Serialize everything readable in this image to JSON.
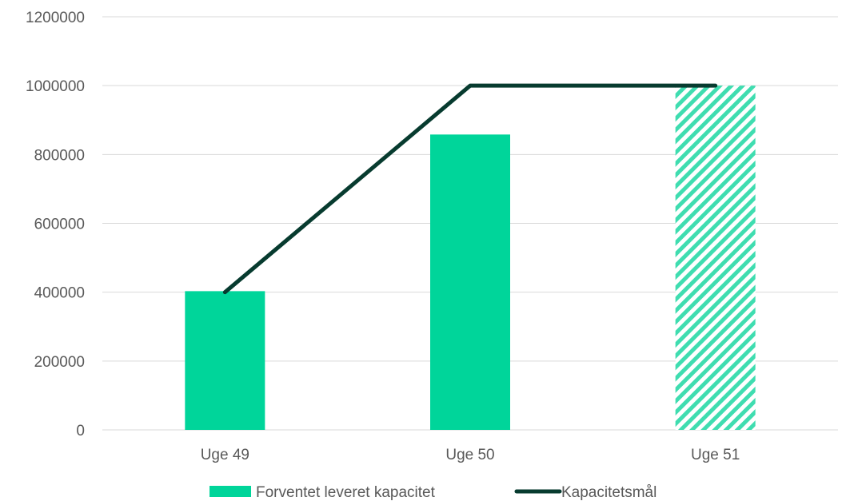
{
  "chart_data": {
    "type": "bar",
    "categories": [
      "Uge 49",
      "Uge 50",
      "Uge 51"
    ],
    "series": [
      {
        "name": "Forventet leveret kapacitet",
        "kind": "bar",
        "values": [
          403000,
          858000,
          1000000
        ],
        "pattern": [
          "solid",
          "solid",
          "hatched"
        ]
      },
      {
        "name": "Kapacitetsmål",
        "kind": "line",
        "values": [
          400000,
          1000000,
          1000000
        ]
      }
    ],
    "y_ticks": [
      "0",
      "200000",
      "400000",
      "600000",
      "800000",
      "1000000",
      "1200000"
    ],
    "ylim": [
      0,
      1200000
    ],
    "grid": true,
    "legend_position": "bottom",
    "colors": {
      "bar": "#00D59A",
      "line": "#073B2F",
      "grid": "#D9D9D9",
      "text": "#595959"
    }
  }
}
